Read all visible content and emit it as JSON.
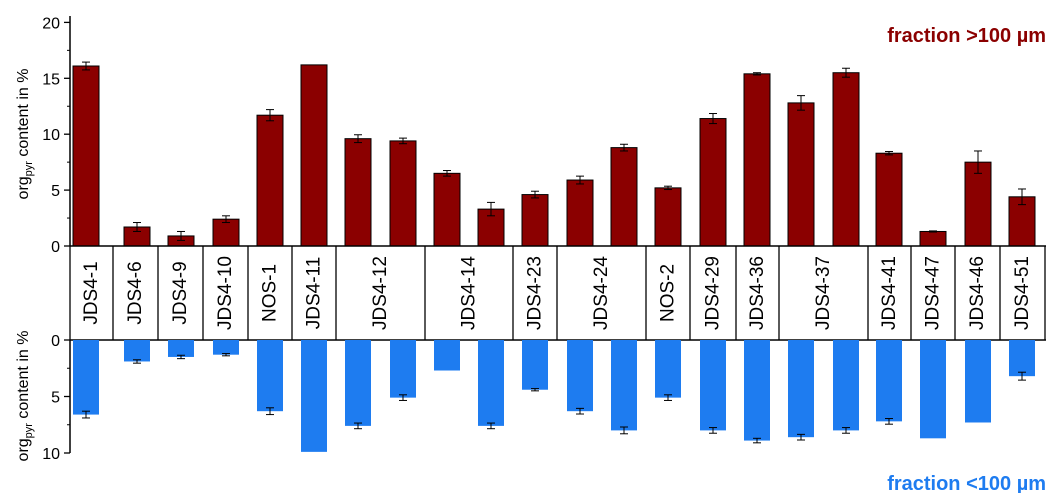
{
  "chart_data": [
    {
      "type": "bar",
      "title": "fraction >100 µm",
      "title_color": "#8b0000",
      "bar_color": "#8b0000",
      "ylabel_main": "org",
      "ylabel_sub": "pyr",
      "ylabel_tail": " content in %",
      "ylim": [
        0,
        20
      ],
      "yticks": [
        0,
        5,
        10,
        15,
        20
      ],
      "categories": [
        "JDS4-1",
        "JDS4-6",
        "JDS4-9",
        "JDS4-10",
        "NOS-1",
        "JDS4-11",
        "JDS4-12a",
        "JDS4-12b",
        "JDS4-14a",
        "JDS4-14b",
        "JDS4-23",
        "JDS4-24a",
        "JDS4-24b",
        "NOS-2",
        "JDS4-29",
        "JDS4-36",
        "JDS4-37a",
        "JDS4-37b",
        "JDS4-41",
        "JDS4-47",
        "JDS4-46",
        "JDS4-51"
      ],
      "values": [
        16.1,
        1.7,
        0.9,
        2.4,
        11.7,
        16.2,
        9.6,
        9.4,
        6.5,
        3.3,
        4.6,
        5.9,
        8.8,
        5.2,
        11.4,
        15.4,
        12.8,
        15.5,
        8.3,
        1.3,
        7.5,
        4.4
      ],
      "errors": [
        0.35,
        0.4,
        0.4,
        0.3,
        0.5,
        0.0,
        0.35,
        0.25,
        0.25,
        0.6,
        0.3,
        0.35,
        0.3,
        0.15,
        0.45,
        0.1,
        0.65,
        0.4,
        0.15,
        0.05,
        1.0,
        0.7
      ],
      "grid": false
    },
    {
      "type": "bar",
      "title": "fraction <100 µm",
      "title_color": "#1e7cf0",
      "bar_color": "#1e7cf0",
      "ylabel_main": "org",
      "ylabel_sub": "pyr",
      "ylabel_tail": " content in %",
      "ylim": [
        0,
        10
      ],
      "y_inverted": true,
      "yticks": [
        0,
        5,
        10
      ],
      "categories": [
        "JDS4-1",
        "JDS4-6",
        "JDS4-9",
        "JDS4-10",
        "NOS-1",
        "JDS4-11",
        "JDS4-12a",
        "JDS4-12b",
        "JDS4-14a",
        "JDS4-14b",
        "JDS4-23",
        "JDS4-24a",
        "JDS4-24b",
        "NOS-2",
        "JDS4-29",
        "JDS4-36",
        "JDS4-37a",
        "JDS4-37b",
        "JDS4-41",
        "JDS4-47",
        "JDS4-46",
        "JDS4-51"
      ],
      "values": [
        6.6,
        1.9,
        1.5,
        1.3,
        6.3,
        9.9,
        7.6,
        5.1,
        2.7,
        7.6,
        4.4,
        6.3,
        8.0,
        5.1,
        8.0,
        8.9,
        8.6,
        8.0,
        7.2,
        8.7,
        7.3,
        3.2
      ],
      "errors": [
        0.3,
        0.15,
        0.15,
        0.1,
        0.3,
        0.0,
        0.25,
        0.25,
        0.0,
        0.25,
        0.1,
        0.25,
        0.3,
        0.25,
        0.25,
        0.2,
        0.25,
        0.25,
        0.25,
        0.0,
        0.0,
        0.35
      ],
      "grid": false
    }
  ],
  "sample_labels": [
    "JDS4-1",
    "JDS4-6",
    "JDS4-9",
    "JDS4-10",
    "NOS-1",
    "JDS4-11",
    "JDS4-12",
    "JDS4-14",
    "JDS4-23",
    "JDS4-24",
    "NOS-2",
    "JDS4-29",
    "JDS4-36",
    "JDS4-37",
    "JDS4-41",
    "JDS4-47",
    "JDS4-46",
    "JDS4-51"
  ]
}
